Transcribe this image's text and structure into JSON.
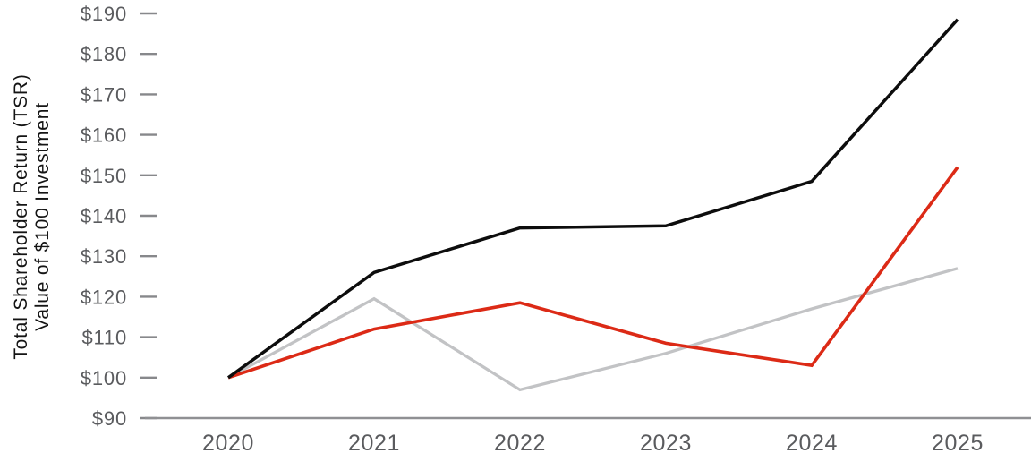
{
  "chart_data": {
    "type": "line",
    "title": "",
    "xlabel": "",
    "ylabel_line1": "Total Shareholder Return (TSR)",
    "ylabel_line2": "Value of $100 Investment",
    "categories": [
      "2020",
      "2021",
      "2022",
      "2023",
      "2024",
      "2025"
    ],
    "series": [
      {
        "name": "gray-line",
        "color": "#c2c3c5",
        "stroke_width": 3.3,
        "values": [
          100,
          119.5,
          97,
          106,
          117,
          127
        ]
      },
      {
        "name": "red-line",
        "color": "#dc2a16",
        "stroke_width": 3.6,
        "values": [
          100,
          112,
          118.5,
          108.5,
          103,
          152
        ]
      },
      {
        "name": "black-line",
        "color": "#0d0d0d",
        "stroke_width": 3.5,
        "values": [
          100,
          126,
          137,
          137.5,
          148.5,
          188.5
        ]
      }
    ],
    "ylim": [
      90,
      190
    ],
    "yticks": [
      90,
      100,
      110,
      120,
      130,
      140,
      150,
      160,
      170,
      180,
      190
    ],
    "ytick_labels": [
      "$90",
      "$100",
      "$110",
      "$120",
      "$130",
      "$140",
      "$150",
      "$160",
      "$170",
      "$180",
      "$190"
    ],
    "grid": false,
    "legend": "none",
    "axis_color": "#8f9093",
    "tick_dash_color": "#87888b",
    "tick_label_color": "#5a5b5e",
    "x_label_color": "#5a5b5e"
  }
}
